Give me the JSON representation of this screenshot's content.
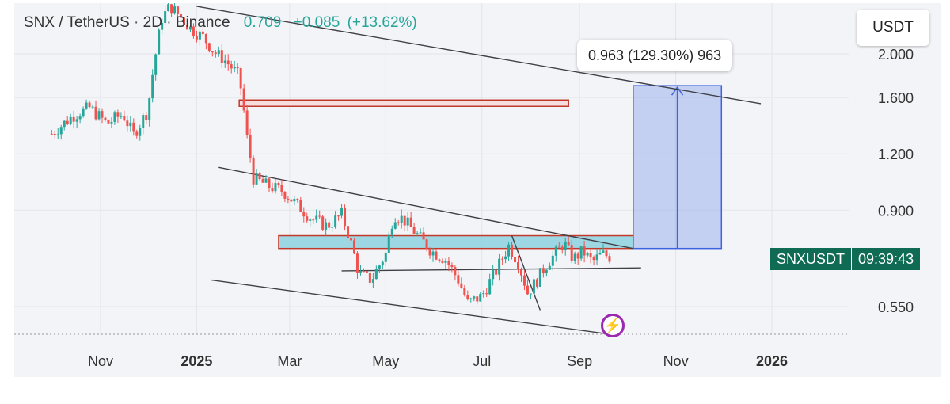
{
  "header": {
    "symbol": "SNX / TetherUS",
    "interval": "2D",
    "exchange": "Binance",
    "separator": "·",
    "last_price": "0.709",
    "change": "+0.085",
    "change_pct": "(+13.62%)"
  },
  "unit_label": "USDT",
  "measure_tooltip": "0.963 (129.30%) 963",
  "price_tag": {
    "symbol": "SNXUSDT",
    "countdown": "09:39:43"
  },
  "icons": {
    "flash": "lightning-icon"
  },
  "colors": {
    "up": "#26a69a",
    "down": "#ef5350",
    "measure": "#3d63e0",
    "zone": "#8ed1e0",
    "zone_border": "#c0392b",
    "tag": "#0f6b54"
  },
  "chart_data": {
    "type": "candlestick",
    "symbol": "SNXUSDT",
    "interval": "2D",
    "y_scale": "log",
    "yticks": [
      "2.000",
      "1.600",
      "1.200",
      "0.900",
      "0.550"
    ],
    "ytick_values": [
      2.0,
      1.6,
      1.2,
      0.9,
      0.55
    ],
    "xticks": [
      "Nov",
      "2025",
      "Mar",
      "May",
      "Jul",
      "Sep",
      "Nov",
      "2026"
    ],
    "xtick_dates": [
      "2024-11-01",
      "2025-01-01",
      "2025-03-01",
      "2025-05-01",
      "2025-07-01",
      "2025-09-01",
      "2025-11-01",
      "2026-01-01"
    ],
    "close_path": [
      [
        "2024-10-01",
        1.33
      ],
      [
        "2024-10-15",
        1.46
      ],
      [
        "2024-10-25",
        1.52
      ],
      [
        "2024-11-05",
        1.4
      ],
      [
        "2024-11-15",
        1.47
      ],
      [
        "2024-11-22",
        1.32
      ],
      [
        "2024-12-01",
        1.5
      ],
      [
        "2024-12-05",
        1.9
      ],
      [
        "2024-12-10",
        2.4
      ],
      [
        "2024-12-15",
        2.55
      ],
      [
        "2024-12-20",
        2.45
      ],
      [
        "2024-12-28",
        2.28
      ],
      [
        "2025-01-05",
        2.18
      ],
      [
        "2025-01-12",
        2.02
      ],
      [
        "2025-01-20",
        1.92
      ],
      [
        "2025-01-28",
        1.78
      ],
      [
        "2025-02-02",
        1.3
      ],
      [
        "2025-02-06",
        1.06
      ],
      [
        "2025-02-15",
        1.02
      ],
      [
        "2025-02-25",
        0.99
      ],
      [
        "2025-03-05",
        0.93
      ],
      [
        "2025-03-15",
        0.86
      ],
      [
        "2025-03-25",
        0.83
      ],
      [
        "2025-04-03",
        0.88
      ],
      [
        "2025-04-08",
        0.78
      ],
      [
        "2025-04-14",
        0.65
      ],
      [
        "2025-04-22",
        0.63
      ],
      [
        "2025-05-01",
        0.72
      ],
      [
        "2025-05-06",
        0.88
      ],
      [
        "2025-05-12",
        0.86
      ],
      [
        "2025-05-20",
        0.8
      ],
      [
        "2025-05-30",
        0.73
      ],
      [
        "2025-06-08",
        0.7
      ],
      [
        "2025-06-16",
        0.63
      ],
      [
        "2025-06-22",
        0.56
      ],
      [
        "2025-07-01",
        0.58
      ],
      [
        "2025-07-10",
        0.66
      ],
      [
        "2025-07-18",
        0.75
      ],
      [
        "2025-07-24",
        0.69
      ],
      [
        "2025-07-30",
        0.59
      ],
      [
        "2025-08-05",
        0.63
      ],
      [
        "2025-08-12",
        0.69
      ],
      [
        "2025-08-18",
        0.73
      ],
      [
        "2025-08-22",
        0.76
      ],
      [
        "2025-08-28",
        0.7
      ],
      [
        "2025-09-03",
        0.73
      ],
      [
        "2025-09-09",
        0.69
      ],
      [
        "2025-09-15",
        0.72
      ],
      [
        "2025-09-20",
        0.709
      ]
    ],
    "drawings": {
      "resistance_zone": {
        "from": "2025-01-28",
        "to": "2025-08-25",
        "low": 1.54,
        "high": 1.58
      },
      "support_zone": {
        "from": "2025-02-22",
        "to": "2025-10-05",
        "low": 0.74,
        "high": 0.79
      },
      "support_line_price": 0.65,
      "measure": {
        "from": "2025-10-05",
        "to": "2025-11-30",
        "base": 0.74,
        "target": 1.7,
        "change": "0.963 (129.30%)"
      }
    }
  }
}
